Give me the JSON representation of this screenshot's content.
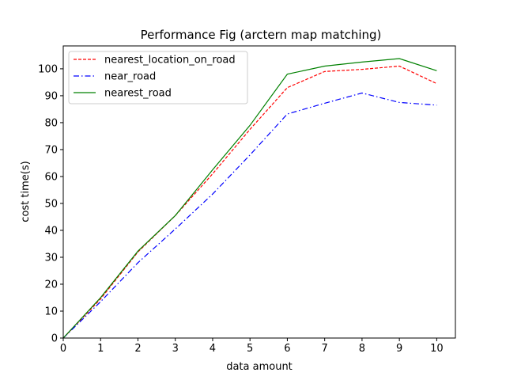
{
  "chart_data": {
    "type": "line",
    "title": "Performance Fig (arctern map matching)",
    "xlabel": "data amount",
    "ylabel": "cost time(s)",
    "x": [
      0,
      1,
      2,
      3,
      4,
      5,
      6,
      7,
      8,
      9,
      10
    ],
    "xlim": [
      0,
      10.5
    ],
    "ylim": [
      0,
      108.5
    ],
    "xticks": [
      0,
      1,
      2,
      3,
      4,
      5,
      6,
      7,
      8,
      9,
      10
    ],
    "yticks": [
      0,
      10,
      20,
      30,
      40,
      50,
      60,
      70,
      80,
      90,
      100
    ],
    "grid": false,
    "legend_position": "top-left",
    "series": [
      {
        "name": "nearest_location_on_road",
        "color": "#ff0000",
        "dash": "dashed",
        "values": [
          0,
          14.5,
          32,
          45.5,
          61,
          77.5,
          93,
          99,
          99.8,
          101,
          94.5
        ]
      },
      {
        "name": "near_road",
        "color": "#0000ff",
        "dash": "dashdot",
        "values": [
          0,
          13.5,
          28,
          40.5,
          53.5,
          68,
          83.2,
          87.2,
          91,
          87.5,
          86.5
        ]
      },
      {
        "name": "nearest_road",
        "color": "#008000",
        "dash": "solid",
        "values": [
          0,
          15,
          32.3,
          45.5,
          62.5,
          79,
          98,
          101,
          102.5,
          103.8,
          99.3
        ]
      }
    ]
  }
}
